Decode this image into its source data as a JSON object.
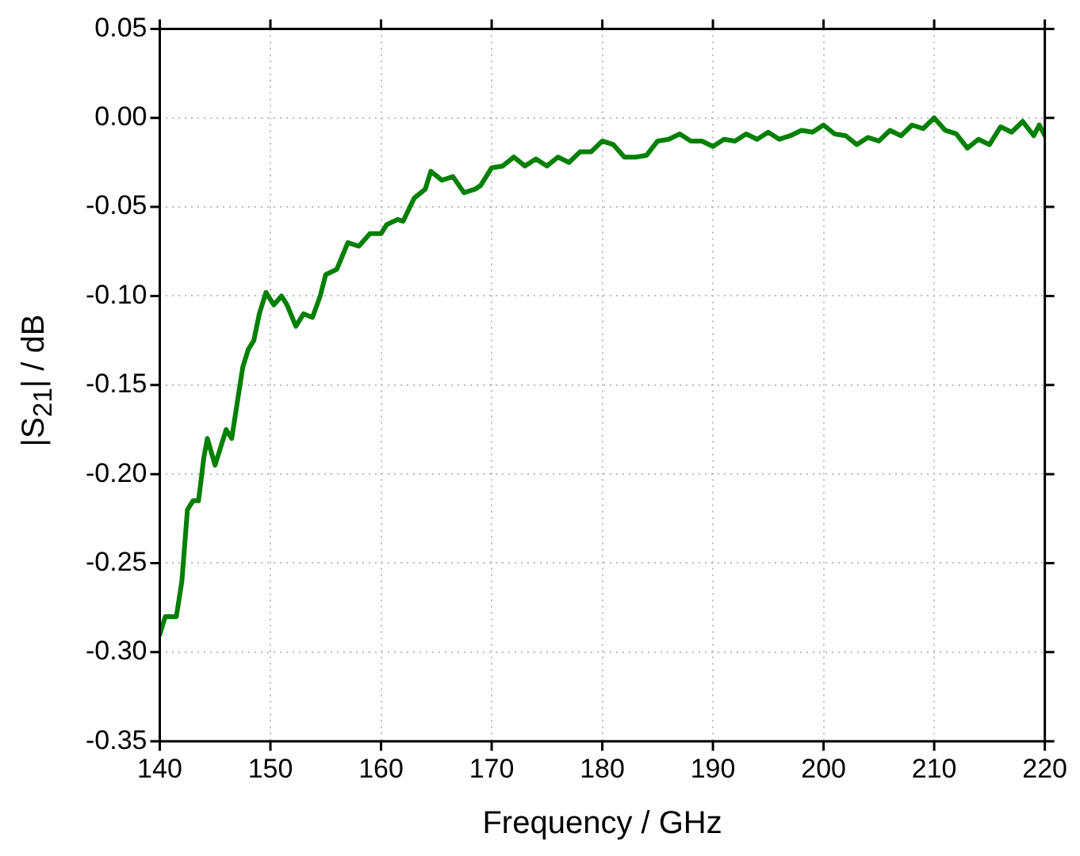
{
  "chart_data": {
    "type": "line",
    "xlabel": "Frequency / GHz",
    "ylabel": "|S$_{21}$| / dB",
    "xlim": [
      140,
      220
    ],
    "xticks": [
      140,
      150,
      160,
      170,
      180,
      190,
      200,
      210,
      220
    ],
    "ylim": [
      -0.35,
      0.05
    ],
    "yticks": [
      {
        "value": -0.35,
        "label": "-0.35"
      },
      {
        "value": -0.3,
        "label": "-0.30"
      },
      {
        "value": -0.25,
        "label": "-0.25"
      },
      {
        "value": -0.2,
        "label": "-0.20"
      },
      {
        "value": -0.15,
        "label": "-0.15"
      },
      {
        "value": -0.1,
        "label": "-0.10"
      },
      {
        "value": -0.05,
        "label": "-0.05"
      },
      {
        "value": 0,
        "label": "0.00"
      },
      {
        "value": 0.05,
        "label": "0.05"
      }
    ],
    "grid": true,
    "marker": "none",
    "line_style": "solid",
    "series": [
      {
        "color": "#008000",
        "x": [
          140,
          140.5,
          141.5,
          142,
          142.5,
          143,
          143.5,
          144,
          144.3,
          145,
          145.5,
          146,
          146.5,
          147,
          147.5,
          148,
          148.5,
          149,
          149.6,
          150.3,
          151,
          151.5,
          152.3,
          153,
          153.8,
          154.5,
          155,
          156,
          157,
          158,
          159,
          160,
          160.5,
          161.5,
          162,
          163,
          164,
          164.5,
          165.5,
          166.5,
          167.5,
          168.5,
          169,
          170,
          171,
          172,
          173,
          174,
          175,
          176,
          177,
          178,
          179,
          180,
          181,
          182,
          183,
          184,
          185,
          186,
          187,
          188,
          189,
          190,
          191,
          192,
          193,
          194,
          195,
          196,
          197,
          198,
          199,
          200,
          201,
          202,
          203,
          204,
          205,
          206,
          207,
          208,
          209,
          210,
          211,
          212,
          213,
          214,
          215,
          216,
          217,
          218,
          219,
          219.5,
          220
        ],
        "values": [
          -0.29,
          -0.28,
          -0.28,
          -0.26,
          -0.22,
          -0.215,
          -0.215,
          -0.19,
          -0.18,
          -0.195,
          -0.185,
          -0.175,
          -0.18,
          -0.16,
          -0.14,
          -0.13,
          -0.125,
          -0.11,
          -0.098,
          -0.105,
          -0.1,
          -0.105,
          -0.117,
          -0.11,
          -0.112,
          -0.1,
          -0.088,
          -0.085,
          -0.07,
          -0.072,
          -0.065,
          -0.065,
          -0.06,
          -0.057,
          -0.058,
          -0.045,
          -0.04,
          -0.03,
          -0.035,
          -0.033,
          -0.042,
          -0.04,
          -0.038,
          -0.028,
          -0.027,
          -0.022,
          -0.027,
          -0.023,
          -0.027,
          -0.022,
          -0.025,
          -0.019,
          -0.019,
          -0.013,
          -0.015,
          -0.022,
          -0.022,
          -0.021,
          -0.013,
          -0.012,
          -0.009,
          -0.013,
          -0.013,
          -0.016,
          -0.012,
          -0.013,
          -0.009,
          -0.012,
          -0.008,
          -0.012,
          -0.01,
          -0.007,
          -0.008,
          -0.004,
          -0.009,
          -0.01,
          -0.015,
          -0.011,
          -0.013,
          -0.007,
          -0.01,
          -0.004,
          -0.006,
          0,
          -0.007,
          -0.009,
          -0.017,
          -0.012,
          -0.015,
          -0.005,
          -0.008,
          -0.002,
          -0.01,
          -0.004,
          -0.01
        ]
      }
    ]
  }
}
